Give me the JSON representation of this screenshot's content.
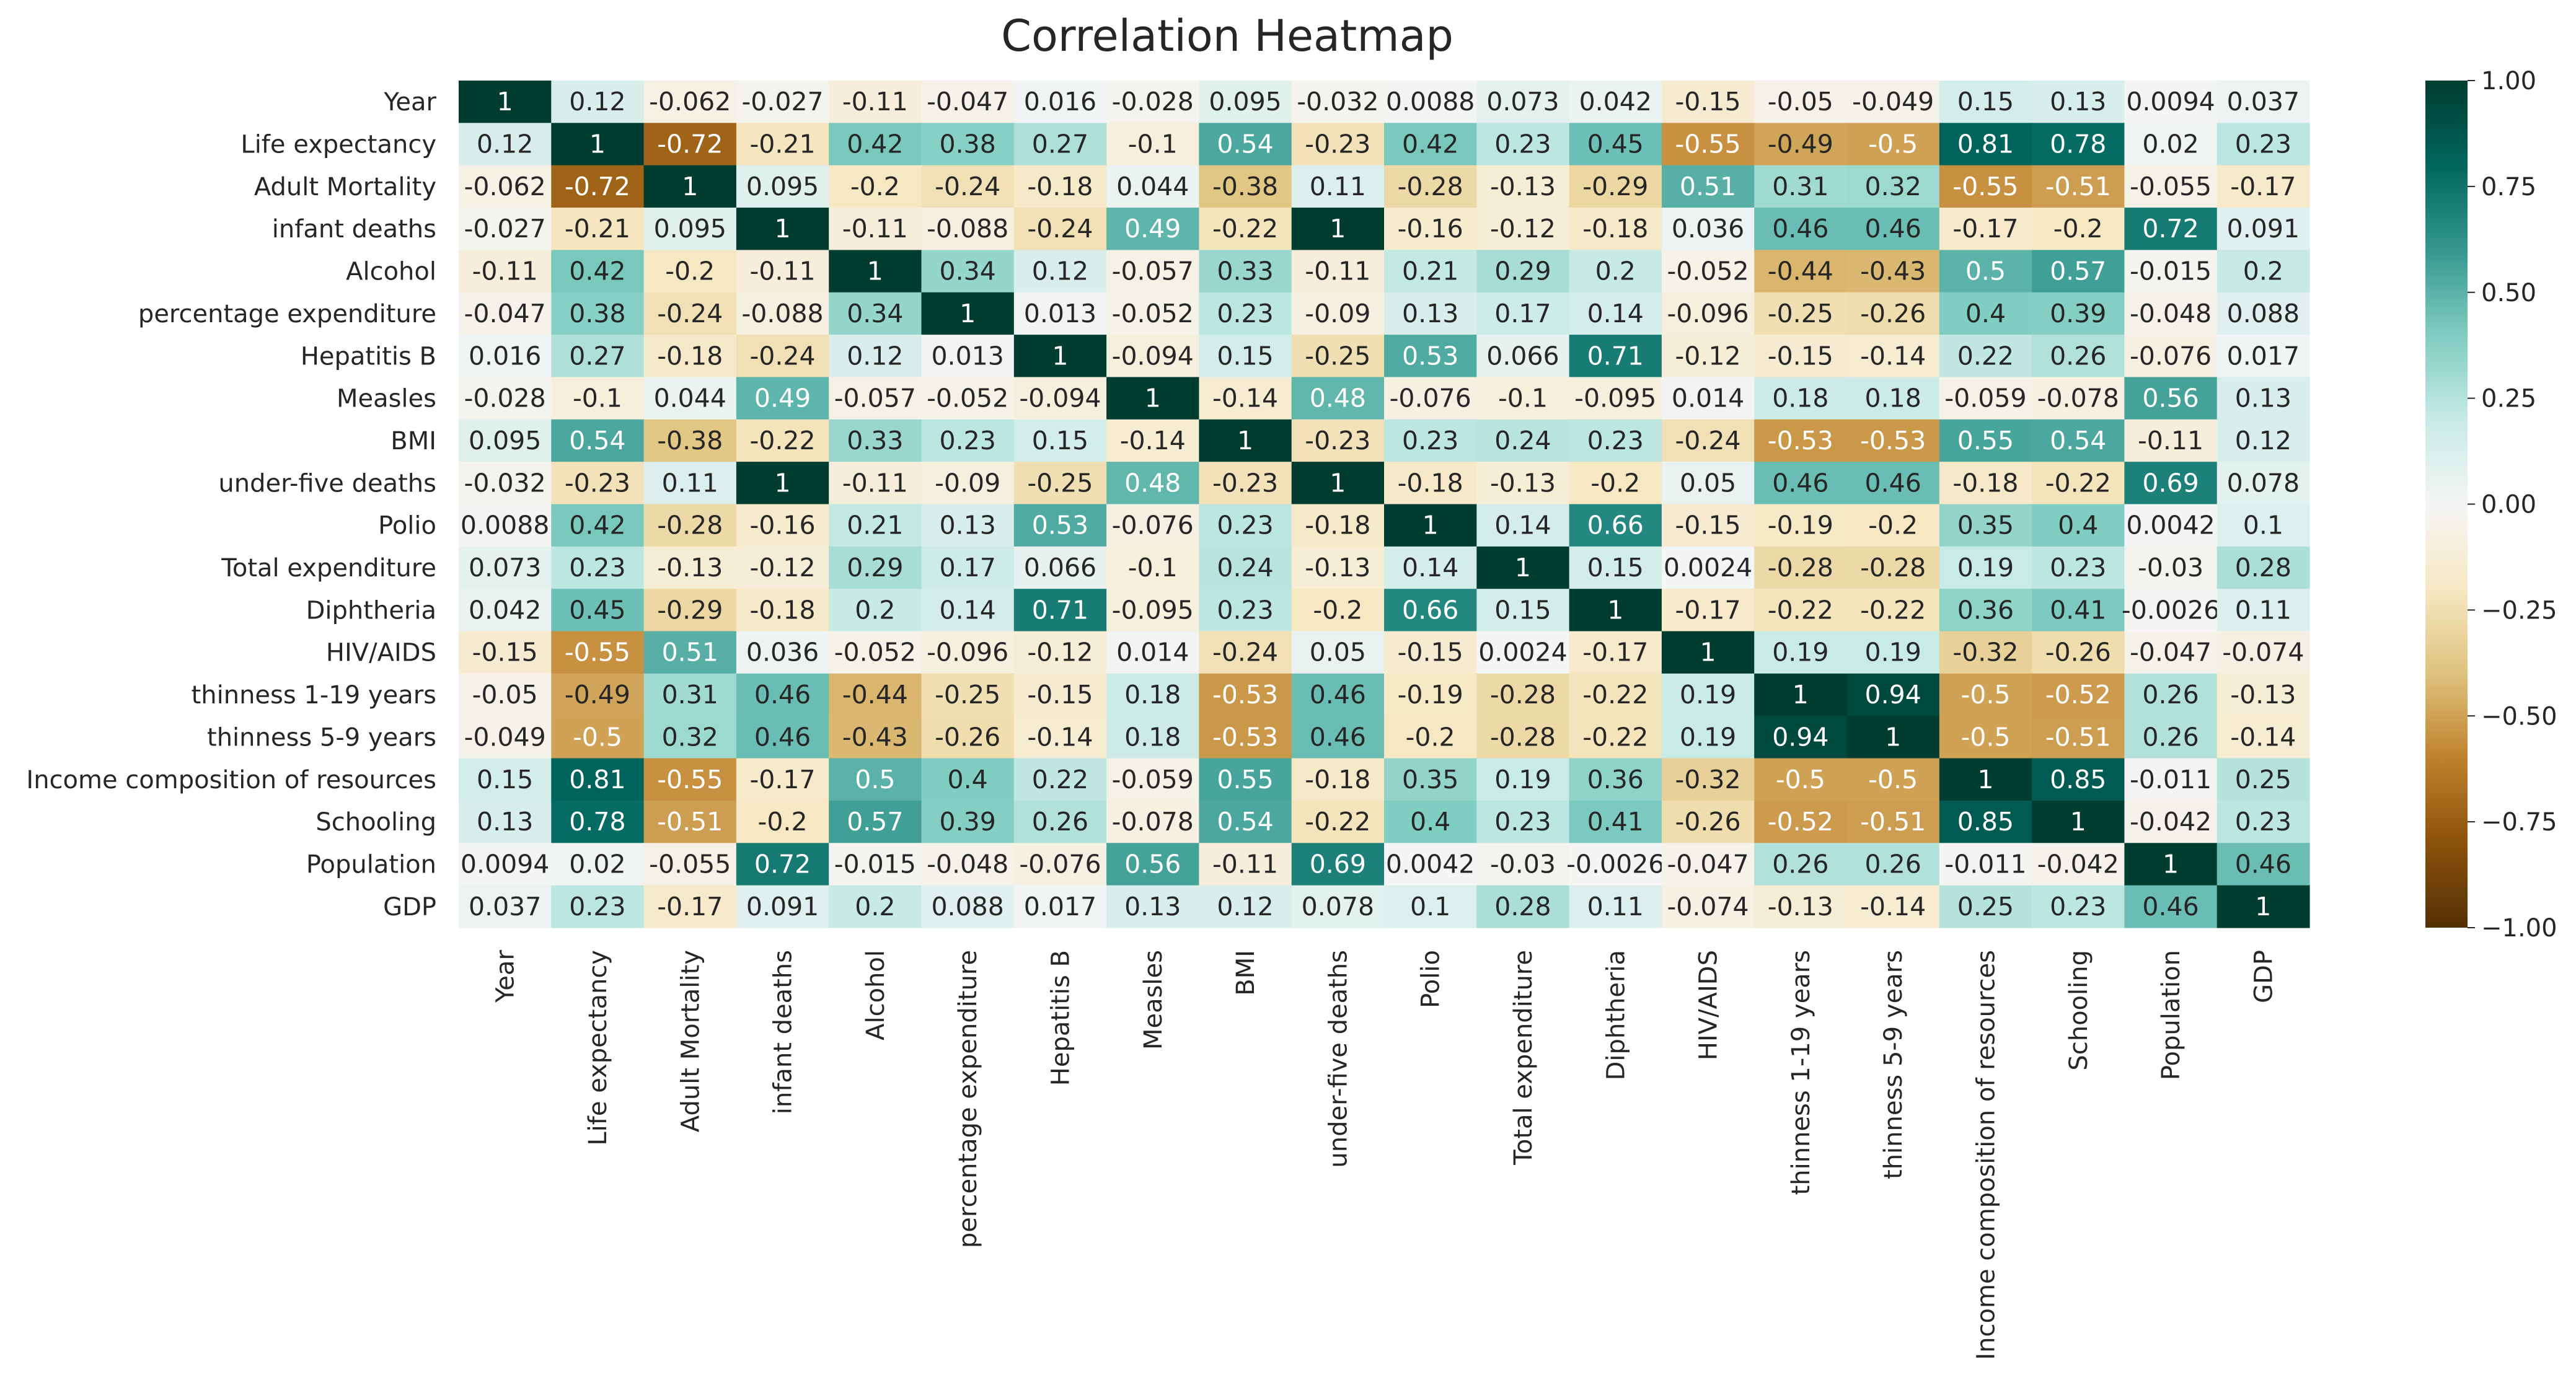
{
  "chart_data": {
    "type": "heatmap",
    "title": "Correlation Heatmap",
    "labels": [
      "Year",
      "Life expectancy ",
      "Adult Mortality",
      "infant deaths",
      "Alcohol",
      "percentage expenditure",
      "Hepatitis B",
      "Measles ",
      "BMI ",
      "under-five deaths ",
      "Polio",
      "Total expenditure",
      "Diphtheria ",
      "HIV/AIDS",
      "thinness  1-19 years",
      "thinness 5-9 years",
      "Income composition of resources",
      "Schooling",
      "Population",
      "GDP"
    ],
    "values": [
      [
        "1",
        "0.12",
        "-0.062",
        "-0.027",
        "-0.11",
        "-0.047",
        "0.016",
        "-0.028",
        "0.095",
        "-0.032",
        "0.0088",
        "0.073",
        "0.042",
        "-0.15",
        "-0.05",
        "-0.049",
        "0.15",
        "0.13",
        "0.0094",
        "0.037"
      ],
      [
        "0.12",
        "1",
        "-0.72",
        "-0.21",
        "0.42",
        "0.38",
        "0.27",
        "-0.1",
        "0.54",
        "-0.23",
        "0.42",
        "0.23",
        "0.45",
        "-0.55",
        "-0.49",
        "-0.5",
        "0.81",
        "0.78",
        "0.02",
        "0.23"
      ],
      [
        "-0.062",
        "-0.72",
        "1",
        "0.095",
        "-0.2",
        "-0.24",
        "-0.18",
        "0.044",
        "-0.38",
        "0.11",
        "-0.28",
        "-0.13",
        "-0.29",
        "0.51",
        "0.31",
        "0.32",
        "-0.55",
        "-0.51",
        "-0.055",
        "-0.17"
      ],
      [
        "-0.027",
        "-0.21",
        "0.095",
        "1",
        "-0.11",
        "-0.088",
        "-0.24",
        "0.49",
        "-0.22",
        "1",
        "-0.16",
        "-0.12",
        "-0.18",
        "0.036",
        "0.46",
        "0.46",
        "-0.17",
        "-0.2",
        "0.72",
        "0.091"
      ],
      [
        "-0.11",
        "0.42",
        "-0.2",
        "-0.11",
        "1",
        "0.34",
        "0.12",
        "-0.057",
        "0.33",
        "-0.11",
        "0.21",
        "0.29",
        "0.2",
        "-0.052",
        "-0.44",
        "-0.43",
        "0.5",
        "0.57",
        "-0.015",
        "0.2"
      ],
      [
        "-0.047",
        "0.38",
        "-0.24",
        "-0.088",
        "0.34",
        "1",
        "0.013",
        "-0.052",
        "0.23",
        "-0.09",
        "0.13",
        "0.17",
        "0.14",
        "-0.096",
        "-0.25",
        "-0.26",
        "0.4",
        "0.39",
        "-0.048",
        "0.088"
      ],
      [
        "0.016",
        "0.27",
        "-0.18",
        "-0.24",
        "0.12",
        "0.013",
        "1",
        "-0.094",
        "0.15",
        "-0.25",
        "0.53",
        "0.066",
        "0.71",
        "-0.12",
        "-0.15",
        "-0.14",
        "0.22",
        "0.26",
        "-0.076",
        "0.017"
      ],
      [
        "-0.028",
        "-0.1",
        "0.044",
        "0.49",
        "-0.057",
        "-0.052",
        "-0.094",
        "1",
        "-0.14",
        "0.48",
        "-0.076",
        "-0.1",
        "-0.095",
        "0.014",
        "0.18",
        "0.18",
        "-0.059",
        "-0.078",
        "0.56",
        "0.13"
      ],
      [
        "0.095",
        "0.54",
        "-0.38",
        "-0.22",
        "0.33",
        "0.23",
        "0.15",
        "-0.14",
        "1",
        "-0.23",
        "0.23",
        "0.24",
        "0.23",
        "-0.24",
        "-0.53",
        "-0.53",
        "0.55",
        "0.54",
        "-0.11",
        "0.12"
      ],
      [
        "-0.032",
        "-0.23",
        "0.11",
        "1",
        "-0.11",
        "-0.09",
        "-0.25",
        "0.48",
        "-0.23",
        "1",
        "-0.18",
        "-0.13",
        "-0.2",
        "0.05",
        "0.46",
        "0.46",
        "-0.18",
        "-0.22",
        "0.69",
        "0.078"
      ],
      [
        "0.0088",
        "0.42",
        "-0.28",
        "-0.16",
        "0.21",
        "0.13",
        "0.53",
        "-0.076",
        "0.23",
        "-0.18",
        "1",
        "0.14",
        "0.66",
        "-0.15",
        "-0.19",
        "-0.2",
        "0.35",
        "0.4",
        "0.0042",
        "0.1"
      ],
      [
        "0.073",
        "0.23",
        "-0.13",
        "-0.12",
        "0.29",
        "0.17",
        "0.066",
        "-0.1",
        "0.24",
        "-0.13",
        "0.14",
        "1",
        "0.15",
        "0.0024",
        "-0.28",
        "-0.28",
        "0.19",
        "0.23",
        "-0.03",
        "0.28"
      ],
      [
        "0.042",
        "0.45",
        "-0.29",
        "-0.18",
        "0.2",
        "0.14",
        "0.71",
        "-0.095",
        "0.23",
        "-0.2",
        "0.66",
        "0.15",
        "1",
        "-0.17",
        "-0.22",
        "-0.22",
        "0.36",
        "0.41",
        "-0.0026",
        "0.11"
      ],
      [
        "-0.15",
        "-0.55",
        "0.51",
        "0.036",
        "-0.052",
        "-0.096",
        "-0.12",
        "0.014",
        "-0.24",
        "0.05",
        "-0.15",
        "0.0024",
        "-0.17",
        "1",
        "0.19",
        "0.19",
        "-0.32",
        "-0.26",
        "-0.047",
        "-0.074"
      ],
      [
        "-0.05",
        "-0.49",
        "0.31",
        "0.46",
        "-0.44",
        "-0.25",
        "-0.15",
        "0.18",
        "-0.53",
        "0.46",
        "-0.19",
        "-0.28",
        "-0.22",
        "0.19",
        "1",
        "0.94",
        "-0.5",
        "-0.52",
        "0.26",
        "-0.13"
      ],
      [
        "-0.049",
        "-0.5",
        "0.32",
        "0.46",
        "-0.43",
        "-0.26",
        "-0.14",
        "0.18",
        "-0.53",
        "0.46",
        "-0.2",
        "-0.28",
        "-0.22",
        "0.19",
        "0.94",
        "1",
        "-0.5",
        "-0.51",
        "0.26",
        "-0.14"
      ],
      [
        "0.15",
        "0.81",
        "-0.55",
        "-0.17",
        "0.5",
        "0.4",
        "0.22",
        "-0.059",
        "0.55",
        "-0.18",
        "0.35",
        "0.19",
        "0.36",
        "-0.32",
        "-0.5",
        "-0.5",
        "1",
        "0.85",
        "-0.011",
        "0.25"
      ],
      [
        "0.13",
        "0.78",
        "-0.51",
        "-0.2",
        "0.57",
        "0.39",
        "0.26",
        "-0.078",
        "0.54",
        "-0.22",
        "0.4",
        "0.23",
        "0.41",
        "-0.26",
        "-0.52",
        "-0.51",
        "0.85",
        "1",
        "-0.042",
        "0.23"
      ],
      [
        "0.0094",
        "0.02",
        "-0.055",
        "0.72",
        "-0.015",
        "-0.048",
        "-0.076",
        "0.56",
        "-0.11",
        "0.69",
        "0.0042",
        "-0.03",
        "-0.0026",
        "-0.047",
        "0.26",
        "0.26",
        "-0.011",
        "-0.042",
        "1",
        "0.46"
      ],
      [
        "0.037",
        "0.23",
        "-0.17",
        "0.091",
        "0.2",
        "0.088",
        "0.017",
        "0.13",
        "0.12",
        "0.078",
        "0.1",
        "0.28",
        "0.11",
        "-0.074",
        "-0.13",
        "-0.14",
        "0.25",
        "0.23",
        "0.46",
        "1"
      ]
    ],
    "vmin": -1,
    "vmax": 1,
    "colormap": "BrBG",
    "colorbar_ticks": [
      "1.00",
      "0.75",
      "0.50",
      "0.25",
      "0.00",
      "−0.25",
      "−0.50",
      "−0.75",
      "−1.00"
    ],
    "grid": false,
    "colorbar_position": "right"
  }
}
